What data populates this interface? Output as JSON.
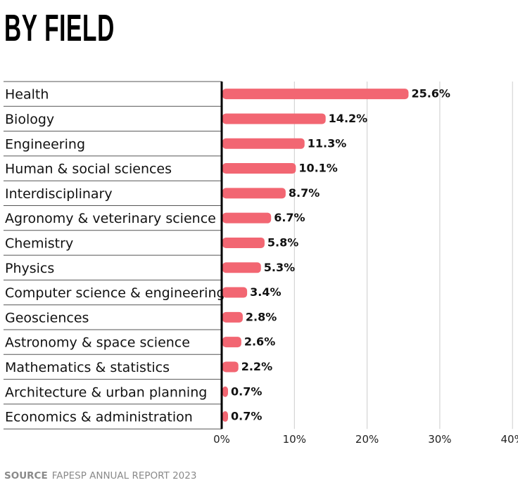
{
  "title": "BY FIELD",
  "source": {
    "label": "SOURCE",
    "text": "FAPESP ANNUAL REPORT 2023"
  },
  "colors": {
    "bar": "#f26672",
    "axis": "#000000",
    "grid": "#cccccc",
    "row_divider": "#555555"
  },
  "chart_data": {
    "type": "bar",
    "orientation": "horizontal",
    "title": "BY FIELD",
    "xlabel": "",
    "ylabel": "",
    "categories": [
      "Health",
      "Biology",
      "Engineering",
      "Human & social sciences",
      "Interdisciplinary",
      "Agronomy & veterinary science",
      "Chemistry",
      "Physics",
      "Computer science & engineering",
      "Geosciences",
      "Astronomy & space science",
      "Mathematics & statistics",
      "Architecture & urban planning",
      "Economics & administration"
    ],
    "values": [
      25.6,
      14.2,
      11.3,
      10.1,
      8.7,
      6.7,
      5.8,
      5.3,
      3.4,
      2.8,
      2.6,
      2.2,
      0.7,
      0.7
    ],
    "value_labels": [
      "25.6%",
      "14.2%",
      "11.3%",
      "10.1%",
      "8.7%",
      "6.7%",
      "5.8%",
      "5.3%",
      "3.4%",
      "2.8%",
      "2.6%",
      "2.2%",
      "0.7%",
      "0.7%"
    ],
    "xlim": [
      0,
      40
    ],
    "xticks": [
      0,
      10,
      20,
      30,
      40
    ],
    "xtick_labels": [
      "0%",
      "10%",
      "20%",
      "30%",
      "40%"
    ],
    "grid": "vertical",
    "legend": "none"
  }
}
